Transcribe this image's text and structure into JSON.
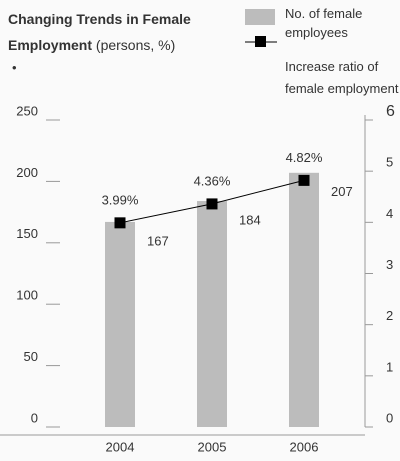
{
  "chart_data": {
    "type": "bar-line",
    "title": "Changing Trends in Female Employment",
    "units": "(persons, %)",
    "note": "•",
    "categories": [
      "2004",
      "2005",
      "2006"
    ],
    "series": [
      {
        "name": "No. of female employees",
        "type": "bar",
        "color": "#bcbcbc",
        "values": [
          167,
          184,
          207
        ]
      },
      {
        "name": "Increase ratio of female employment",
        "type": "line",
        "axis": "y2",
        "color": "#000000",
        "values": [
          3.99,
          4.36,
          4.82
        ],
        "value_labels": [
          "3.99%",
          "4.36%",
          "4.82%"
        ]
      }
    ],
    "ylim": [
      0,
      250
    ],
    "yticks": [
      0,
      50,
      100,
      150,
      200,
      250
    ],
    "y2lim": [
      0,
      6
    ],
    "y2ticks": [
      0,
      1,
      2,
      3,
      4,
      5,
      6
    ]
  }
}
